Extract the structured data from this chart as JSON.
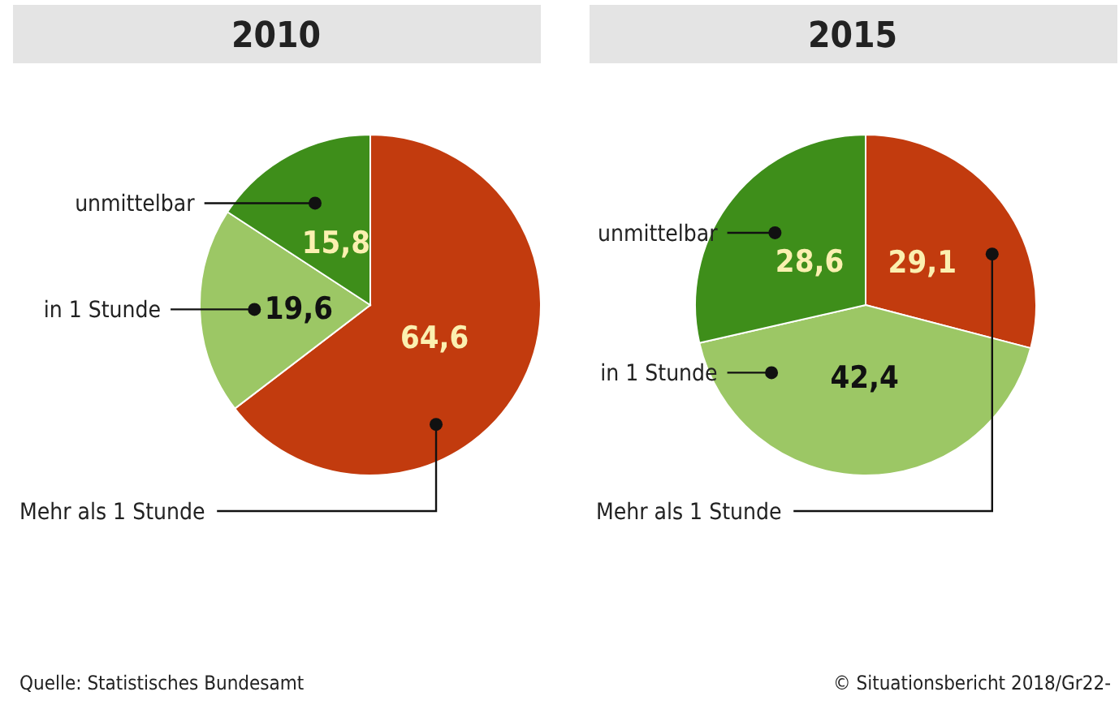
{
  "chart_data": [
    {
      "type": "pie",
      "title": "2010",
      "categories": [
        "Mehr als 1 Stunde",
        "in 1 Stunde",
        "unmittelbar"
      ],
      "values": [
        64.6,
        19.6,
        15.8
      ],
      "value_labels": [
        "64,6",
        "19,6",
        "15,8"
      ],
      "colors": [
        "#c23b0e",
        "#9cc765",
        "#3e8e1a"
      ],
      "annotations": [
        "Quelle: Statistisches Bundesamt"
      ]
    },
    {
      "type": "pie",
      "title": "2015",
      "categories": [
        "Mehr als 1 Stunde",
        "in 1 Stunde",
        "unmittelbar"
      ],
      "values": [
        29.1,
        42.4,
        28.6
      ],
      "value_labels": [
        "29,1",
        "42,4",
        "28,6"
      ],
      "colors": [
        "#c23b0e",
        "#9cc765",
        "#3e8e1a"
      ],
      "annotations": [
        "© Situationsbericht 2018/Gr22-"
      ]
    }
  ]
}
